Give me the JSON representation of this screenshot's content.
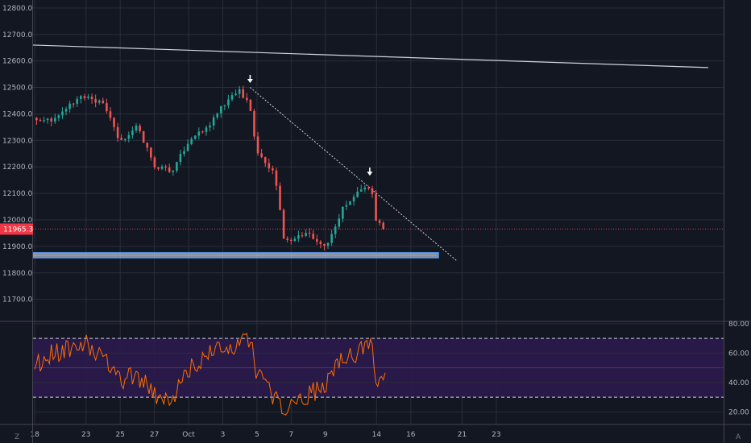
{
  "chart_data": [
    {
      "type": "candlestick",
      "panel": "price",
      "title": "",
      "y_ticks": [
        "12800.0",
        "12700.0",
        "12600.0",
        "12500.0",
        "12400.0",
        "12300.0",
        "12200.0",
        "12100.0",
        "12000.0",
        "11900.0",
        "11800.0",
        "11700.0"
      ],
      "y_tick_values": [
        12800,
        12700,
        12600,
        12500,
        12400,
        12300,
        12200,
        12100,
        12000,
        11900,
        11800,
        11700
      ],
      "ylim": [
        11620,
        12830
      ],
      "last_price": 11965.3,
      "last_price_label": "11965.3",
      "price_path_keypoints": [
        {
          "day": 0.0,
          "price": 12385
        },
        {
          "day": 1.0,
          "price": 12375
        },
        {
          "day": 2.0,
          "price": 12430
        },
        {
          "day": 3.0,
          "price": 12470
        },
        {
          "day": 4.0,
          "price": 12440
        },
        {
          "day": 5.0,
          "price": 12290
        },
        {
          "day": 6.0,
          "price": 12360
        },
        {
          "day": 7.0,
          "price": 12200
        },
        {
          "day": 8.0,
          "price": 12180
        },
        {
          "day": 9.0,
          "price": 12300
        },
        {
          "day": 10.0,
          "price": 12340
        },
        {
          "day": 11.0,
          "price": 12430
        },
        {
          "day": 12.0,
          "price": 12490
        },
        {
          "day": 12.6,
          "price": 12420
        },
        {
          "day": 13.0,
          "price": 12250
        },
        {
          "day": 14.0,
          "price": 12180
        },
        {
          "day": 14.6,
          "price": 11920
        },
        {
          "day": 15.0,
          "price": 11930
        },
        {
          "day": 16.0,
          "price": 11950
        },
        {
          "day": 17.0,
          "price": 11900
        },
        {
          "day": 18.0,
          "price": 12040
        },
        {
          "day": 19.0,
          "price": 12110
        },
        {
          "day": 19.7,
          "price": 12120
        },
        {
          "day": 20.0,
          "price": 11980
        },
        {
          "day": 20.5,
          "price": 11985
        }
      ],
      "down_arrows": [
        {
          "day": 12.6,
          "price": 12520
        },
        {
          "day": 19.6,
          "price": 12170
        }
      ],
      "trendlines": [
        {
          "p1": {
            "day": -0.1,
            "price": 12660
          },
          "p2": {
            "day": 39.4,
            "price": 12575
          }
        },
        {
          "p1": {
            "day": 12.6,
            "price": 12500
          },
          "p2": {
            "day": 24.7,
            "price": 11845
          }
        }
      ],
      "support_band": {
        "price_top": 11875,
        "price_bottom": 11858,
        "day_from": -0.1,
        "day_to": 23.6
      },
      "colors": {
        "up": "#26a69a",
        "down": "#ef5350",
        "support": "#5b9cf6",
        "last_price": "#f23645"
      }
    },
    {
      "type": "line",
      "panel": "rsi",
      "title": "",
      "y_ticks": [
        "80.00",
        "60.00",
        "40.00",
        "20.00"
      ],
      "y_tick_values": [
        80,
        60,
        40,
        20
      ],
      "ylim": [
        12,
        81
      ],
      "band": [
        30,
        70
      ],
      "mid": 50,
      "rsi_path_keypoints": [
        {
          "day": 0.0,
          "value": 52
        },
        {
          "day": 1.0,
          "value": 60
        },
        {
          "day": 2.0,
          "value": 62
        },
        {
          "day": 3.0,
          "value": 66
        },
        {
          "day": 4.0,
          "value": 58
        },
        {
          "day": 5.0,
          "value": 40
        },
        {
          "day": 6.0,
          "value": 45
        },
        {
          "day": 7.0,
          "value": 32
        },
        {
          "day": 8.0,
          "value": 30
        },
        {
          "day": 9.0,
          "value": 48
        },
        {
          "day": 10.0,
          "value": 58
        },
        {
          "day": 11.0,
          "value": 62
        },
        {
          "day": 12.0,
          "value": 66
        },
        {
          "day": 12.6,
          "value": 68
        },
        {
          "day": 13.0,
          "value": 45
        },
        {
          "day": 14.0,
          "value": 30
        },
        {
          "day": 14.6,
          "value": 22
        },
        {
          "day": 15.0,
          "value": 28
        },
        {
          "day": 16.0,
          "value": 32
        },
        {
          "day": 17.0,
          "value": 38
        },
        {
          "day": 18.0,
          "value": 55
        },
        {
          "day": 19.0,
          "value": 62
        },
        {
          "day": 19.7,
          "value": 65
        },
        {
          "day": 20.0,
          "value": 38
        },
        {
          "day": 20.5,
          "value": 40
        }
      ],
      "colors": {
        "line": "#ff6d00",
        "band_fill": "#2b1a4d",
        "dashed": "#d1d4dc"
      }
    }
  ],
  "x_axis": {
    "ticks": [
      {
        "label": "18",
        "day": 0
      },
      {
        "label": "23",
        "day": 3
      },
      {
        "label": "25",
        "day": 5
      },
      {
        "label": "27",
        "day": 7
      },
      {
        "label": "Oct",
        "day": 9
      },
      {
        "label": "3",
        "day": 11
      },
      {
        "label": "5",
        "day": 13
      },
      {
        "label": "7",
        "day": 15
      },
      {
        "label": "9",
        "day": 17
      },
      {
        "label": "14",
        "day": 20
      },
      {
        "label": "16",
        "day": 22
      },
      {
        "label": "21",
        "day": 25
      },
      {
        "label": "23",
        "day": 27
      }
    ],
    "xlim": [
      -0.1,
      40.3
    ]
  },
  "corner_labels": {
    "left": "Z",
    "right": "A"
  }
}
